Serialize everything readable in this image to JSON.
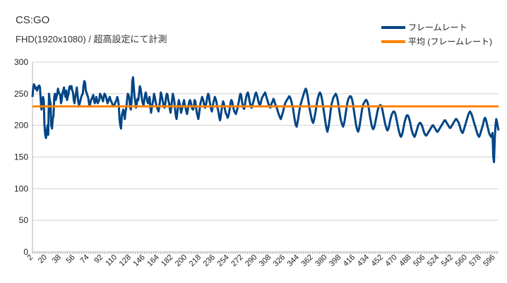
{
  "chart_data": {
    "type": "line",
    "title": "CS:GO",
    "subtitle": "FHD(1920x1080) /  超高設定にて計測",
    "x_start": 1,
    "x_end": 600,
    "x_tick_labels": [
      2,
      20,
      38,
      56,
      74,
      92,
      110,
      128,
      146,
      164,
      182,
      200,
      218,
      236,
      254,
      272,
      290,
      308,
      326,
      344,
      362,
      380,
      398,
      416,
      434,
      452,
      470,
      488,
      506,
      524,
      542,
      560,
      578,
      596
    ],
    "y_ticks": [
      0,
      50,
      100,
      150,
      200,
      250,
      300
    ],
    "ylim": [
      0,
      300
    ],
    "grid": true,
    "legend_position": "top-right",
    "series": [
      {
        "name": "フレームレート",
        "color": "#004586",
        "values": [
          245,
          260,
          265,
          262,
          258,
          260,
          255,
          258,
          262,
          263,
          260,
          240,
          225,
          238,
          245,
          240,
          200,
          185,
          180,
          190,
          200,
          185,
          250,
          240,
          235,
          200,
          195,
          210,
          215,
          245,
          250,
          240,
          245,
          250,
          258,
          252,
          250,
          248,
          235,
          240,
          252,
          255,
          260,
          250,
          245,
          255,
          240,
          245,
          250,
          260,
          262,
          258,
          262,
          255,
          252,
          240,
          235,
          245,
          250,
          260,
          248,
          238,
          232,
          235,
          240,
          245,
          248,
          250,
          262,
          270,
          268,
          255,
          252,
          248,
          245,
          238,
          230,
          235,
          240,
          242,
          245,
          248,
          240,
          235,
          238,
          245,
          240,
          235,
          238,
          240,
          250,
          248,
          245,
          242,
          238,
          245,
          250,
          248,
          245,
          240,
          235,
          238,
          242,
          245,
          240,
          238,
          235,
          232,
          230,
          232,
          235,
          238,
          240,
          245,
          240,
          232,
          210,
          200,
          195,
          215,
          220,
          225,
          218,
          210,
          222,
          228,
          240,
          250,
          248,
          245,
          230,
          225,
          238,
          270,
          276,
          260,
          245,
          238,
          228,
          235,
          242,
          240,
          250,
          262,
          258,
          250,
          240,
          235,
          232,
          240,
          248,
          252,
          245,
          238,
          235,
          240,
          245,
          230,
          220,
          228,
          235,
          240,
          250,
          245,
          238,
          232,
          228,
          225,
          222,
          230,
          240,
          252,
          248,
          242,
          236,
          230,
          228,
          235,
          245,
          250,
          248,
          240,
          235,
          226,
          220,
          230,
          240,
          250,
          245,
          238,
          225,
          215,
          210,
          220,
          232,
          240,
          235,
          228,
          220,
          225,
          230,
          235,
          240,
          232,
          228,
          222,
          218,
          225,
          232,
          238,
          240,
          236,
          230,
          226,
          225,
          230,
          240,
          238,
          228,
          220,
          215,
          210,
          218,
          228,
          236,
          240,
          245,
          242,
          238,
          230,
          228,
          232,
          238,
          245,
          250,
          248,
          238,
          232,
          226,
          222,
          228,
          236,
          240,
          245,
          242,
          238,
          230,
          226,
          220,
          212,
          208,
          215,
          225,
          232,
          238,
          235,
          228,
          222,
          218,
          216,
          212,
          215,
          220,
          228,
          236,
          240,
          238,
          232,
          226,
          222,
          220,
          218,
          222,
          226,
          232,
          238,
          245,
          250,
          248,
          240,
          232,
          228,
          226,
          232,
          240,
          246,
          250,
          252,
          248,
          240,
          234,
          230,
          228,
          232,
          236,
          240,
          245,
          250,
          252,
          248,
          244,
          238,
          234,
          232,
          235,
          240,
          244,
          246,
          248,
          250,
          252,
          248,
          244,
          240,
          236,
          232,
          230,
          228,
          232,
          236,
          238,
          242,
          240,
          235,
          232,
          230,
          226,
          222,
          218,
          215,
          212,
          210,
          214,
          218,
          222,
          228,
          232,
          236,
          238,
          240,
          242,
          244,
          246,
          245,
          242,
          238,
          232,
          228,
          220,
          212,
          205,
          200,
          198,
          204,
          210,
          218,
          226,
          232,
          236,
          240,
          244,
          248,
          252,
          255,
          258,
          256,
          250,
          244,
          236,
          228,
          222,
          216,
          210,
          206,
          204,
          208,
          214,
          220,
          228,
          236,
          242,
          246,
          250,
          252,
          250,
          246,
          240,
          232,
          224,
          216,
          208,
          200,
          194,
          190,
          195,
          202,
          210,
          220,
          230,
          236,
          240,
          244,
          246,
          248,
          250,
          248,
          244,
          238,
          230,
          222,
          214,
          208,
          204,
          200,
          198,
          202,
          208,
          216,
          224,
          232,
          238,
          242,
          244,
          246,
          246,
          244,
          240,
          234,
          226,
          218,
          210,
          202,
          196,
          192,
          190,
          194,
          200,
          208,
          216,
          224,
          230,
          234,
          236,
          238,
          240,
          240,
          238,
          234,
          228,
          220,
          212,
          206,
          200,
          196,
          194,
          196,
          200,
          206,
          212,
          218,
          224,
          228,
          230,
          232,
          232,
          230,
          226,
          220,
          214,
          208,
          202,
          198,
          194,
          192,
          194,
          198,
          204,
          210,
          214,
          218,
          220,
          222,
          222,
          220,
          216,
          210,
          204,
          198,
          192,
          188,
          184,
          182,
          184,
          188,
          194,
          200,
          206,
          210,
          214,
          216,
          216,
          214,
          210,
          206,
          200,
          194,
          190,
          186,
          184,
          182,
          184,
          188,
          192,
          196,
          200,
          202,
          204,
          204,
          202,
          200,
          196,
          192,
          188,
          186,
          184,
          184,
          186,
          188,
          190,
          192,
          194,
          196,
          198,
          200,
          200,
          198,
          196,
          194,
          192,
          190,
          190,
          192,
          194,
          196,
          198,
          200,
          202,
          204,
          206,
          208,
          208,
          206,
          204,
          202,
          200,
          198,
          196,
          196,
          198,
          200,
          202,
          204,
          206,
          208,
          210,
          210,
          208,
          206,
          204,
          200,
          196,
          192,
          190,
          188,
          190,
          194,
          198,
          202,
          206,
          210,
          214,
          218,
          220,
          222,
          220,
          218,
          214,
          210,
          206,
          202,
          198,
          194,
          190,
          186,
          184,
          182,
          184,
          188,
          192,
          196,
          200,
          205,
          210,
          212,
          210,
          205,
          200,
          195,
          190,
          186,
          184,
          182,
          184,
          188,
          150,
          142,
          180,
          200,
          210,
          205,
          198,
          192
        ]
      },
      {
        "name": "平均 (フレームレート)",
        "color": "#FF8000",
        "values": [
          230
        ]
      }
    ]
  }
}
